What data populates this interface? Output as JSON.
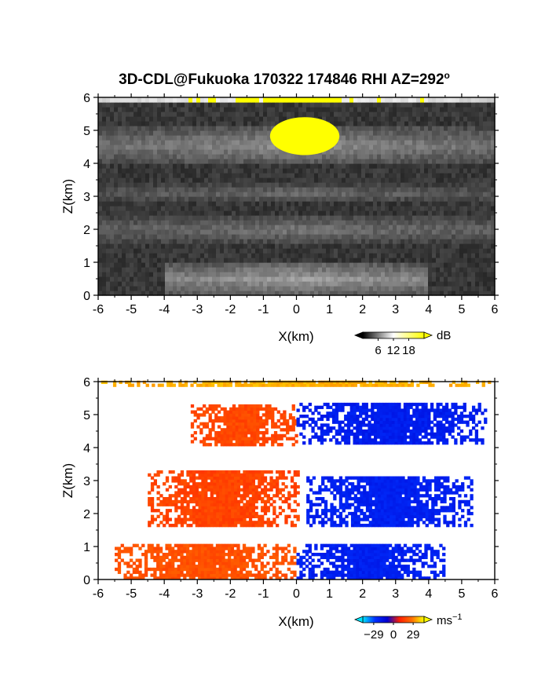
{
  "title_main": "3D-CDL@Fukuoka 170322 174846 RHI AZ=292",
  "title_sup": "o",
  "chart_data": [
    {
      "type": "heatmap",
      "name": "reflectivity",
      "xlabel": "X(km)",
      "ylabel": "Z(km)",
      "xlim": [
        -6,
        6
      ],
      "ylim": [
        0,
        6
      ],
      "xticks": [
        "-6",
        "-5",
        "-4",
        "-3",
        "-2",
        "-1",
        "0",
        "1",
        "2",
        "3",
        "4",
        "5",
        "6"
      ],
      "yticks": [
        "0",
        "1",
        "2",
        "3",
        "4",
        "5",
        "6"
      ],
      "colorbar": {
        "unit": "dB",
        "ticks": [
          "6",
          "12",
          "18"
        ],
        "tick_values": [
          6,
          12,
          18
        ],
        "range": [
          0,
          24
        ],
        "colors": [
          "#000000",
          "#ffffff",
          "#ffff00"
        ]
      },
      "layers": [
        {
          "z": [
            4.0,
            5.1
          ],
          "xlim": [
            -6,
            6
          ],
          "level": 10
        },
        {
          "z": [
            2.8,
            3.4
          ],
          "xlim": [
            -6,
            6
          ],
          "level": 7
        },
        {
          "z": [
            1.6,
            2.4
          ],
          "xlim": [
            -6,
            6
          ],
          "level": 8
        },
        {
          "z": [
            0.0,
            1.0
          ],
          "xlim": [
            -4,
            4
          ],
          "level": 11
        },
        {
          "z": [
            5.85,
            6.0
          ],
          "xlim": [
            -6,
            6
          ],
          "level": 20
        }
      ],
      "saturated_core": {
        "x": [
          -0.8,
          1.3
        ],
        "z": [
          4.25,
          5.4
        ]
      }
    },
    {
      "type": "heatmap",
      "name": "doppler_velocity",
      "xlabel": "X(km)",
      "ylabel": "Z(km)",
      "xlim": [
        -6,
        6
      ],
      "ylim": [
        0,
        6
      ],
      "xticks": [
        "-6",
        "-5",
        "-4",
        "-3",
        "-2",
        "-1",
        "0",
        "1",
        "2",
        "3",
        "4",
        "5",
        "6"
      ],
      "yticks": [
        "0",
        "1",
        "2",
        "3",
        "4",
        "5",
        "6"
      ],
      "colorbar": {
        "unit": "ms",
        "unit_exp": "−1",
        "ticks": [
          "−29",
          "0",
          "29"
        ],
        "tick_values": [
          -29,
          0,
          29
        ],
        "range": [
          -45,
          45
        ],
        "colors": [
          "#00e5ff",
          "#0030ff",
          "#0000d0",
          "#ff2000",
          "#ff7000",
          "#ffff00"
        ]
      },
      "regions": [
        {
          "x": [
            -3.2,
            0.0
          ],
          "z": [
            4.05,
            5.35
          ],
          "velocity": 18
        },
        {
          "x": [
            0.0,
            5.8
          ],
          "z": [
            4.1,
            5.4
          ],
          "velocity": -20
        },
        {
          "x": [
            -4.5,
            0.1
          ],
          "z": [
            1.6,
            3.3
          ],
          "velocity": 17
        },
        {
          "x": [
            0.3,
            5.3
          ],
          "z": [
            1.6,
            3.1
          ],
          "velocity": -21
        },
        {
          "x": [
            -5.5,
            0.0
          ],
          "z": [
            0.0,
            1.1
          ],
          "velocity": 20
        },
        {
          "x": [
            0.0,
            4.5
          ],
          "z": [
            0.0,
            1.1
          ],
          "velocity": -21
        },
        {
          "x": [
            -6.0,
            6.0
          ],
          "z": [
            5.85,
            6.0
          ],
          "velocity": 35
        }
      ]
    }
  ]
}
